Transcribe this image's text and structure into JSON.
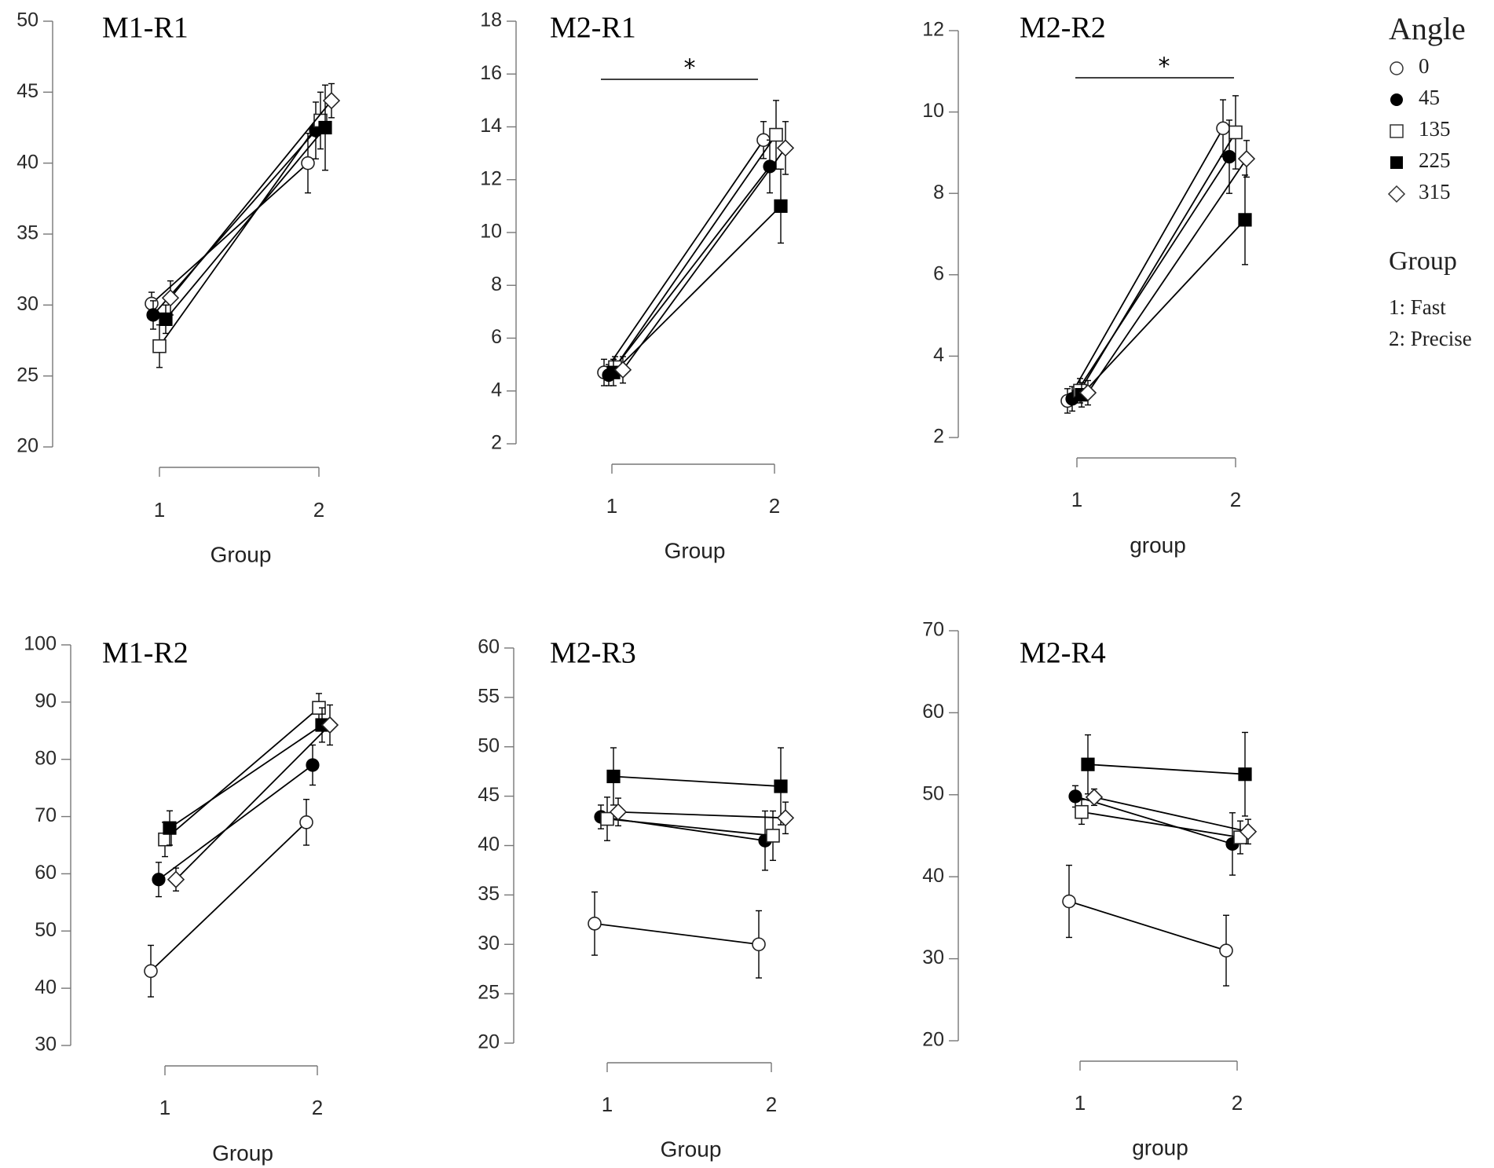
{
  "legend": {
    "title": "Angle",
    "entries": [
      {
        "label": "0",
        "marker": "open-circle"
      },
      {
        "label": "45",
        "marker": "filled-circle"
      },
      {
        "label": "135",
        "marker": "open-square"
      },
      {
        "label": "225",
        "marker": "filled-square"
      },
      {
        "label": "315",
        "marker": "open-diamond"
      }
    ],
    "group_title": "Group",
    "group_items": [
      "1: Fast",
      "2: Precise"
    ]
  },
  "chart_data": [
    {
      "type": "line",
      "title": "M1-R1",
      "xlabel": "Group",
      "ylabel": "",
      "categories": [
        "1",
        "2"
      ],
      "ylim": [
        20,
        50
      ],
      "yticks": [
        20,
        25,
        30,
        35,
        40,
        45,
        50
      ],
      "significance": null,
      "series": [
        {
          "name": "0",
          "values": [
            30.1,
            40.0
          ],
          "errors": [
            0.8,
            2.1
          ]
        },
        {
          "name": "45",
          "values": [
            29.3,
            42.3
          ],
          "errors": [
            1.0,
            2.0
          ]
        },
        {
          "name": "135",
          "values": [
            27.1,
            43.0
          ],
          "errors": [
            1.5,
            2.0
          ]
        },
        {
          "name": "225",
          "values": [
            29.0,
            42.5
          ],
          "errors": [
            1.0,
            3.0
          ]
        },
        {
          "name": "315",
          "values": [
            30.5,
            44.4
          ],
          "errors": [
            1.2,
            1.2
          ]
        }
      ]
    },
    {
      "type": "line",
      "title": "M2-R1",
      "xlabel": "Group",
      "ylabel": "",
      "categories": [
        "1",
        "2"
      ],
      "ylim": [
        2,
        18
      ],
      "yticks": [
        2,
        4,
        6,
        8,
        10,
        12,
        14,
        16,
        18
      ],
      "significance": {
        "symbol": "*"
      },
      "series": [
        {
          "name": "0",
          "values": [
            4.7,
            13.5
          ],
          "errors": [
            0.5,
            0.7
          ]
        },
        {
          "name": "45",
          "values": [
            4.6,
            12.5
          ],
          "errors": [
            0.4,
            1.0
          ]
        },
        {
          "name": "135",
          "values": [
            4.9,
            13.7
          ],
          "errors": [
            0.4,
            1.3
          ]
        },
        {
          "name": "225",
          "values": [
            4.7,
            11.0
          ],
          "errors": [
            0.5,
            1.4
          ]
        },
        {
          "name": "315",
          "values": [
            4.8,
            13.2
          ],
          "errors": [
            0.5,
            1.0
          ]
        }
      ]
    },
    {
      "type": "line",
      "title": "M2-R2",
      "xlabel": "group",
      "ylabel": "",
      "categories": [
        "1",
        "2"
      ],
      "ylim": [
        2,
        12
      ],
      "yticks": [
        2,
        4,
        6,
        8,
        10,
        12
      ],
      "significance": {
        "symbol": "*"
      },
      "series": [
        {
          "name": "0",
          "values": [
            2.9,
            9.6
          ],
          "errors": [
            0.3,
            0.7
          ]
        },
        {
          "name": "45",
          "values": [
            2.95,
            8.9
          ],
          "errors": [
            0.3,
            0.9
          ]
        },
        {
          "name": "135",
          "values": [
            3.15,
            9.5
          ],
          "errors": [
            0.3,
            0.9
          ]
        },
        {
          "name": "225",
          "values": [
            3.05,
            7.35
          ],
          "errors": [
            0.3,
            1.1
          ]
        },
        {
          "name": "315",
          "values": [
            3.1,
            8.85
          ],
          "errors": [
            0.3,
            0.45
          ]
        }
      ]
    },
    {
      "type": "line",
      "title": "M1-R2",
      "xlabel": "Group",
      "ylabel": "",
      "categories": [
        "1",
        "2"
      ],
      "ylim": [
        30,
        100
      ],
      "yticks": [
        30,
        40,
        50,
        60,
        70,
        80,
        90,
        100
      ],
      "significance": null,
      "series": [
        {
          "name": "0",
          "values": [
            43,
            69
          ],
          "errors": [
            4.5,
            4.0
          ]
        },
        {
          "name": "45",
          "values": [
            59,
            79
          ],
          "errors": [
            3.0,
            3.5
          ]
        },
        {
          "name": "135",
          "values": [
            66,
            89
          ],
          "errors": [
            3.0,
            2.5
          ]
        },
        {
          "name": "225",
          "values": [
            68,
            86
          ],
          "errors": [
            3.0,
            3.0
          ]
        },
        {
          "name": "315",
          "values": [
            59,
            86
          ],
          "errors": [
            2.0,
            3.5
          ]
        }
      ]
    },
    {
      "type": "line",
      "title": "M2-R3",
      "xlabel": "Group",
      "ylabel": "",
      "categories": [
        "1",
        "2"
      ],
      "ylim": [
        20,
        60
      ],
      "yticks": [
        20,
        25,
        30,
        35,
        40,
        45,
        50,
        55,
        60
      ],
      "significance": null,
      "series": [
        {
          "name": "0",
          "values": [
            32.1,
            30.0
          ],
          "errors": [
            3.2,
            3.4
          ]
        },
        {
          "name": "45",
          "values": [
            42.9,
            40.5
          ],
          "errors": [
            1.2,
            3.0
          ]
        },
        {
          "name": "135",
          "values": [
            42.7,
            41.0
          ],
          "errors": [
            2.2,
            2.5
          ]
        },
        {
          "name": "225",
          "values": [
            47.0,
            46.0
          ],
          "errors": [
            2.9,
            3.9
          ]
        },
        {
          "name": "315",
          "values": [
            43.4,
            42.8
          ],
          "errors": [
            1.4,
            1.6
          ]
        }
      ]
    },
    {
      "type": "line",
      "title": "M2-R4",
      "xlabel": "group",
      "ylabel": "",
      "categories": [
        "1",
        "2"
      ],
      "ylim": [
        20,
        70
      ],
      "yticks": [
        20,
        30,
        40,
        50,
        60,
        70
      ],
      "significance": null,
      "series": [
        {
          "name": "0",
          "values": [
            37.0,
            31.0
          ],
          "errors": [
            4.4,
            4.3
          ]
        },
        {
          "name": "45",
          "values": [
            49.8,
            44.0
          ],
          "errors": [
            1.3,
            3.8
          ]
        },
        {
          "name": "135",
          "values": [
            47.9,
            44.8
          ],
          "errors": [
            1.5,
            2.0
          ]
        },
        {
          "name": "225",
          "values": [
            53.7,
            52.5
          ],
          "errors": [
            3.6,
            5.1
          ]
        },
        {
          "name": "315",
          "values": [
            49.7,
            45.5
          ],
          "errors": [
            1.0,
            1.5
          ]
        }
      ]
    }
  ]
}
